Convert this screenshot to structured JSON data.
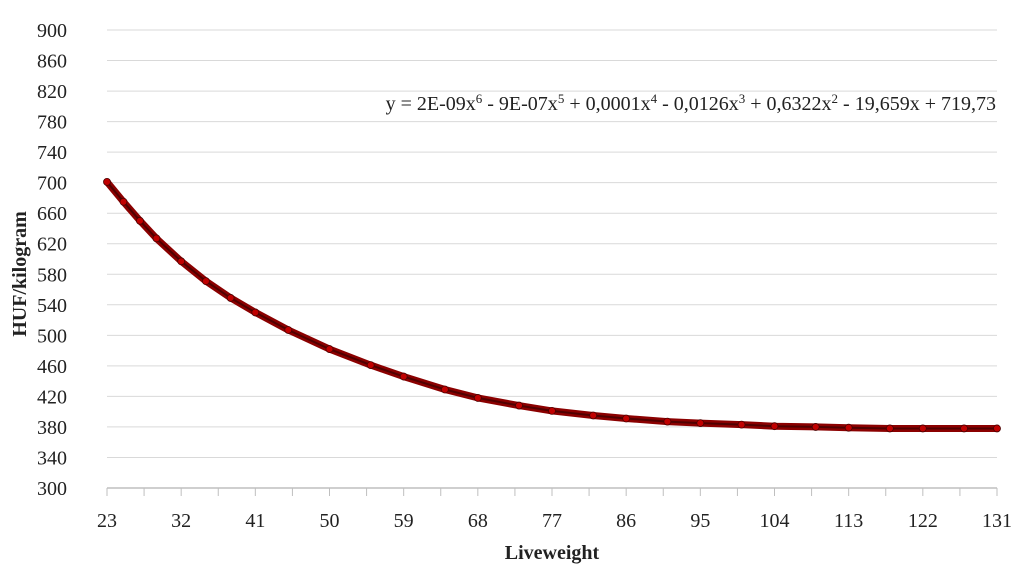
{
  "chart_data": {
    "type": "line",
    "title": "",
    "xlabel": "Liveweight",
    "ylabel": "HUF/kilogram",
    "xlim": [
      23,
      131
    ],
    "ylim": [
      300,
      900
    ],
    "x_ticks": [
      23,
      32,
      41,
      50,
      59,
      68,
      77,
      86,
      95,
      104,
      113,
      122,
      131
    ],
    "x_tick_labels": [
      "23",
      "32",
      "41",
      "50",
      "59",
      "68",
      "77",
      "86",
      "95",
      "104",
      "113",
      "122",
      "131"
    ],
    "y_ticks": [
      300,
      340,
      380,
      420,
      460,
      500,
      540,
      580,
      620,
      660,
      700,
      740,
      780,
      820,
      860,
      900
    ],
    "y_tick_labels": [
      "300",
      "340",
      "380",
      "420",
      "460",
      "500",
      "540",
      "580",
      "620",
      "660",
      "700",
      "740",
      "780",
      "820",
      "860",
      "900"
    ],
    "grid": true,
    "legend": "none",
    "equation": {
      "parts": [
        {
          "t": "y = 2E-09x",
          "sup": false
        },
        {
          "t": "6",
          "sup": true
        },
        {
          "t": " - 9E-07x",
          "sup": false
        },
        {
          "t": "5",
          "sup": true
        },
        {
          "t": " + 0,0001x",
          "sup": false
        },
        {
          "t": "4",
          "sup": true
        },
        {
          "t": " - 0,0126x",
          "sup": false
        },
        {
          "t": "3",
          "sup": true
        },
        {
          "t": " + 0,6322x",
          "sup": false
        },
        {
          "t": "2",
          "sup": true
        },
        {
          "t": " - 19,659x + 719,73",
          "sup": false
        }
      ]
    },
    "series": [
      {
        "color": "#8b0000",
        "x": [
          23,
          25,
          27,
          29,
          32,
          35,
          38,
          41,
          45,
          50,
          55,
          59,
          64,
          68,
          73,
          77,
          82,
          86,
          91,
          95,
          100,
          104,
          109,
          113,
          118,
          122,
          127,
          131
        ],
        "y": [
          701,
          675,
          650,
          627,
          597,
          571,
          549,
          530,
          507,
          482,
          461,
          446,
          429,
          418,
          408,
          401,
          395,
          391,
          387,
          385,
          383,
          381,
          380,
          379,
          378,
          378,
          378,
          378
        ]
      }
    ]
  },
  "colors": {
    "line": "#8b0000",
    "marker": "#c00000",
    "grid": "#d9d9d9",
    "axis": "#bfbfbf",
    "text": "#222222"
  }
}
